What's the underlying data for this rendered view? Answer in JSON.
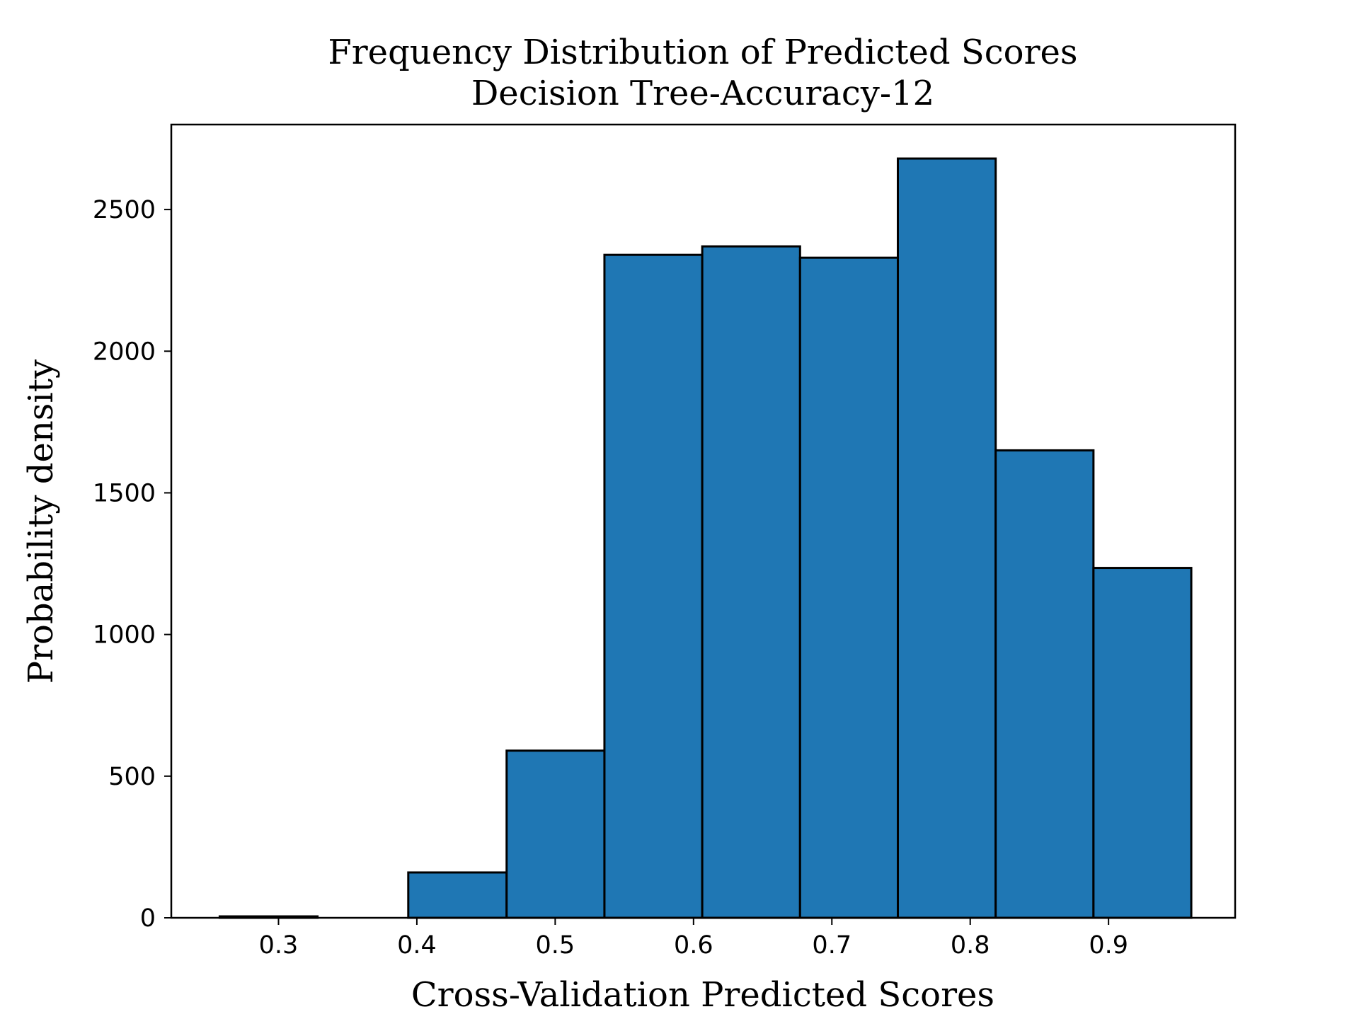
{
  "chart_data": {
    "type": "bar",
    "title": "Frequency Distribution of Predicted Scores",
    "subtitle": "Decision Tree-Accuracy-12",
    "xlabel": "Cross-Validation Predicted Scores",
    "ylabel": "Probability density",
    "bar_color": "#1f77b4",
    "edge_color": "#000000",
    "grid": false,
    "legend": "none",
    "xlim": [
      0.2225,
      0.9915
    ],
    "ylim": [
      0,
      2800
    ],
    "x_ticks": [
      0.3,
      0.4,
      0.5,
      0.6,
      0.7,
      0.8,
      0.9
    ],
    "x_tick_labels": [
      "0.3",
      "0.4",
      "0.5",
      "0.6",
      "0.7",
      "0.8",
      "0.9"
    ],
    "y_ticks": [
      0,
      500,
      1000,
      1500,
      2000,
      2500
    ],
    "y_tick_labels": [
      "0",
      "500",
      "1000",
      "1500",
      "2000",
      "2500"
    ],
    "bin_edges": [
      0.2575,
      0.3282,
      0.3938,
      0.4649,
      0.5356,
      0.6063,
      0.677,
      0.7477,
      0.8184,
      0.8891,
      0.9598
    ],
    "values": [
      5,
      0,
      160,
      590,
      2340,
      2370,
      2330,
      2680,
      1650,
      1235
    ]
  }
}
